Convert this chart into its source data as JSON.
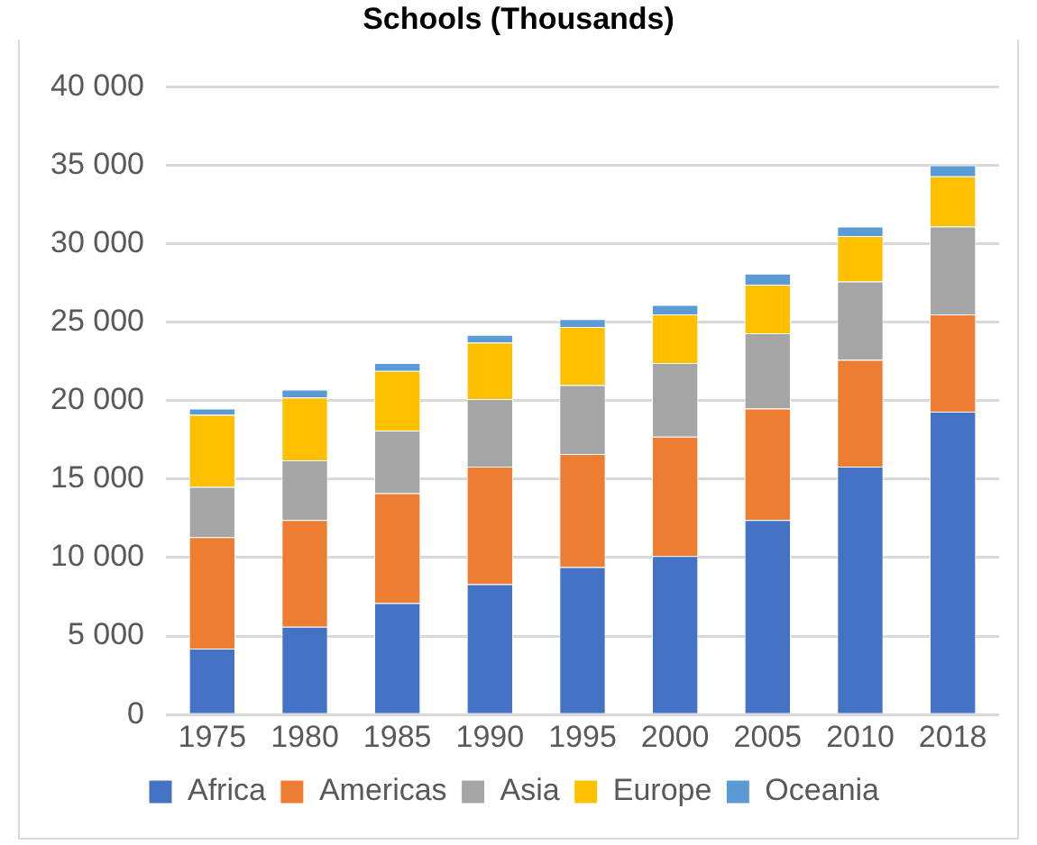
{
  "chart_data": {
    "type": "bar",
    "title": "Schools (Thousands)",
    "stacked": true,
    "grid": "y",
    "legend": "bottom",
    "categories": [
      "1975",
      "1980",
      "1985",
      "1990",
      "1995",
      "2000",
      "2005",
      "2010",
      "2018"
    ],
    "ylim": [
      0,
      40000
    ],
    "yticks": [
      {
        "value": 0,
        "label": "0"
      },
      {
        "value": 5000,
        "label": "5 000"
      },
      {
        "value": 10000,
        "label": "10 000"
      },
      {
        "value": 15000,
        "label": "15 000"
      },
      {
        "value": 20000,
        "label": "20 000"
      },
      {
        "value": 25000,
        "label": "25 000"
      },
      {
        "value": 30000,
        "label": "30 000"
      },
      {
        "value": 35000,
        "label": "35 000"
      },
      {
        "value": 40000,
        "label": "40 000"
      }
    ],
    "series": [
      {
        "name": "Africa",
        "color": "#4472c4",
        "values": [
          4200,
          5600,
          7100,
          8300,
          9400,
          10100,
          12400,
          15800,
          19300
        ]
      },
      {
        "name": "Americas",
        "color": "#ed7d31",
        "values": [
          7100,
          6800,
          7000,
          7500,
          7200,
          7600,
          7100,
          6800,
          6200
        ]
      },
      {
        "name": "Asia",
        "color": "#a5a5a5",
        "values": [
          3200,
          3800,
          4000,
          4300,
          4400,
          4700,
          4800,
          5000,
          5600
        ]
      },
      {
        "name": "Europe",
        "color": "#ffc000",
        "values": [
          4600,
          4000,
          3800,
          3600,
          3700,
          3100,
          3100,
          2900,
          3200
        ]
      },
      {
        "name": "Oceania",
        "color": "#5b9bd5",
        "values": [
          400,
          500,
          500,
          500,
          500,
          600,
          700,
          600,
          700
        ]
      }
    ]
  }
}
